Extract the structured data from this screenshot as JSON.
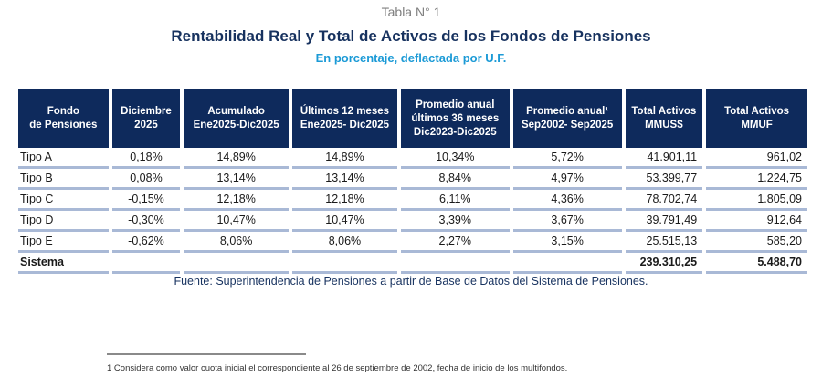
{
  "caption": "Tabla N° 1",
  "title": "Rentabilidad Real y Total de Activos de los Fondos de Pensiones",
  "subtitle": "En porcentaje, deflactada por U.F.",
  "table": {
    "headers": [
      [
        "Fondo",
        "de Pensiones"
      ],
      [
        "Diciembre",
        "2025"
      ],
      [
        "Acumulado",
        "Ene2025-Dic2025"
      ],
      [
        "Últimos 12 meses",
        "Ene2025- Dic2025"
      ],
      [
        "Promedio anual",
        "últimos 36 meses",
        "Dic2023-Dic2025"
      ],
      [
        "Promedio anual¹",
        "Sep2002- Sep2025"
      ],
      [
        "Total Activos",
        "MMUS$"
      ],
      [
        "Total Activos",
        "MMUF"
      ]
    ],
    "rows": [
      [
        "Tipo A",
        "0,18%",
        "14,89%",
        "14,89%",
        "10,34%",
        "5,72%",
        "41.901,11",
        "961,02"
      ],
      [
        "Tipo B",
        "0,08%",
        "13,14%",
        "13,14%",
        "8,84%",
        "4,97%",
        "53.399,77",
        "1.224,75"
      ],
      [
        "Tipo C",
        "-0,15%",
        "12,18%",
        "12,18%",
        "6,11%",
        "4,36%",
        "78.702,74",
        "1.805,09"
      ],
      [
        "Tipo D",
        "-0,30%",
        "10,47%",
        "10,47%",
        "3,39%",
        "3,67%",
        "39.791,49",
        "912,64"
      ],
      [
        "Tipo E",
        "-0,62%",
        "8,06%",
        "8,06%",
        "2,27%",
        "3,15%",
        "25.515,13",
        "585,20"
      ]
    ],
    "total": [
      "Sistema",
      "",
      "",
      "",
      "",
      "",
      "239.310,25",
      "5.488,70"
    ]
  },
  "source": "Fuente: Superintendencia de Pensiones a partir de Base de Datos del Sistema de Pensiones.",
  "footnote": "1 Considera como valor cuota inicial el correspondiente al 26 de septiembre de 2002, fecha de inicio de los multifondos.",
  "colors": {
    "header_bg": "#0e2a5c",
    "title": "#17325f",
    "subtitle": "#1b9ad6",
    "row_rule": "#a9b9d6"
  }
}
